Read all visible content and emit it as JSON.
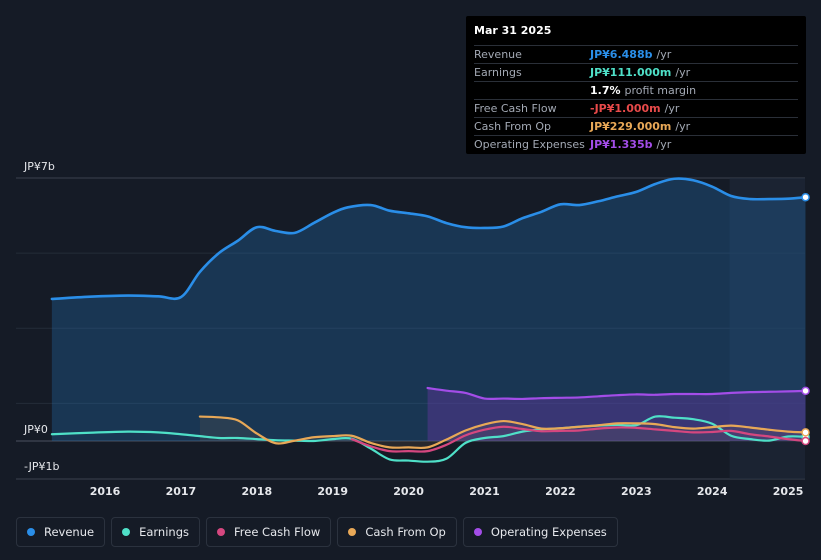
{
  "chart_data": {
    "type": "line",
    "y_axis": {
      "top_label": "JP¥7b",
      "zero_label": "JP¥0",
      "bottom_label": "-JP¥1b",
      "ylim_billions": [
        -1.0,
        7.0
      ]
    },
    "x_ticks": [
      "2016",
      "2017",
      "2018",
      "2019",
      "2020",
      "2021",
      "2022",
      "2023",
      "2024",
      "2025"
    ],
    "forecast_start": 2024.23,
    "series": [
      {
        "name": "Revenue",
        "color": "#2a8ee8",
        "fill": true,
        "key": "revenue",
        "points": [
          [
            2015.3,
            3.78
          ],
          [
            2015.8,
            3.84
          ],
          [
            2016.3,
            3.87
          ],
          [
            2016.7,
            3.85
          ],
          [
            2017.0,
            3.83
          ],
          [
            2017.25,
            4.5
          ],
          [
            2017.5,
            5.0
          ],
          [
            2017.75,
            5.33
          ],
          [
            2018.0,
            5.69
          ],
          [
            2018.25,
            5.59
          ],
          [
            2018.5,
            5.54
          ],
          [
            2018.75,
            5.8
          ],
          [
            2019.0,
            6.07
          ],
          [
            2019.2,
            6.22
          ],
          [
            2019.5,
            6.28
          ],
          [
            2019.75,
            6.13
          ],
          [
            2020.0,
            6.06
          ],
          [
            2020.25,
            5.98
          ],
          [
            2020.5,
            5.8
          ],
          [
            2020.75,
            5.69
          ],
          [
            2021.0,
            5.67
          ],
          [
            2021.25,
            5.71
          ],
          [
            2021.5,
            5.93
          ],
          [
            2021.75,
            6.1
          ],
          [
            2022.0,
            6.3
          ],
          [
            2022.25,
            6.28
          ],
          [
            2022.5,
            6.38
          ],
          [
            2022.75,
            6.51
          ],
          [
            2023.0,
            6.63
          ],
          [
            2023.25,
            6.84
          ],
          [
            2023.5,
            6.98
          ],
          [
            2023.75,
            6.94
          ],
          [
            2024.0,
            6.77
          ],
          [
            2024.25,
            6.52
          ],
          [
            2024.5,
            6.44
          ],
          [
            2024.75,
            6.44
          ],
          [
            2025.0,
            6.45
          ],
          [
            2025.23,
            6.488
          ]
        ]
      },
      {
        "name": "Operating Expenses",
        "color": "#a34de8",
        "fill": true,
        "key": "opex",
        "points": [
          [
            2020.25,
            1.41
          ],
          [
            2020.5,
            1.34
          ],
          [
            2020.75,
            1.28
          ],
          [
            2021.0,
            1.13
          ],
          [
            2021.25,
            1.13
          ],
          [
            2021.5,
            1.12
          ],
          [
            2021.75,
            1.14
          ],
          [
            2022.0,
            1.15
          ],
          [
            2022.25,
            1.16
          ],
          [
            2022.5,
            1.19
          ],
          [
            2022.75,
            1.22
          ],
          [
            2023.0,
            1.24
          ],
          [
            2023.25,
            1.23
          ],
          [
            2023.5,
            1.25
          ],
          [
            2023.75,
            1.25
          ],
          [
            2024.0,
            1.25
          ],
          [
            2024.25,
            1.28
          ],
          [
            2024.5,
            1.3
          ],
          [
            2024.75,
            1.31
          ],
          [
            2025.0,
            1.32
          ],
          [
            2025.23,
            1.335
          ]
        ]
      },
      {
        "name": "Earnings",
        "color": "#4fe0c8",
        "fill": false,
        "key": "earnings",
        "points": [
          [
            2015.3,
            0.18
          ],
          [
            2015.8,
            0.22
          ],
          [
            2016.3,
            0.25
          ],
          [
            2016.7,
            0.23
          ],
          [
            2017.0,
            0.18
          ],
          [
            2017.25,
            0.13
          ],
          [
            2017.5,
            0.08
          ],
          [
            2017.75,
            0.08
          ],
          [
            2018.0,
            0.05
          ],
          [
            2018.25,
            0.02
          ],
          [
            2018.5,
            0.01
          ],
          [
            2018.75,
            0.0
          ],
          [
            2019.0,
            0.05
          ],
          [
            2019.25,
            0.06
          ],
          [
            2019.5,
            -0.2
          ],
          [
            2019.75,
            -0.49
          ],
          [
            2020.0,
            -0.52
          ],
          [
            2020.25,
            -0.55
          ],
          [
            2020.5,
            -0.47
          ],
          [
            2020.75,
            -0.05
          ],
          [
            2021.0,
            0.08
          ],
          [
            2021.25,
            0.13
          ],
          [
            2021.5,
            0.25
          ],
          [
            2021.75,
            0.31
          ],
          [
            2022.0,
            0.34
          ],
          [
            2022.25,
            0.38
          ],
          [
            2022.5,
            0.41
          ],
          [
            2022.75,
            0.43
          ],
          [
            2023.0,
            0.42
          ],
          [
            2023.25,
            0.65
          ],
          [
            2023.5,
            0.62
          ],
          [
            2023.75,
            0.58
          ],
          [
            2024.0,
            0.46
          ],
          [
            2024.25,
            0.14
          ],
          [
            2024.5,
            0.05
          ],
          [
            2024.75,
            0.01
          ],
          [
            2025.0,
            0.12
          ],
          [
            2025.23,
            0.111
          ]
        ]
      },
      {
        "name": "Free Cash Flow",
        "color": "#d5477f",
        "fill": false,
        "key": "fcf",
        "points": [
          [
            2019.25,
            0.05
          ],
          [
            2019.5,
            -0.14
          ],
          [
            2019.75,
            -0.27
          ],
          [
            2020.0,
            -0.27
          ],
          [
            2020.25,
            -0.27
          ],
          [
            2020.5,
            -0.1
          ],
          [
            2020.75,
            0.15
          ],
          [
            2021.0,
            0.3
          ],
          [
            2021.25,
            0.38
          ],
          [
            2021.5,
            0.32
          ],
          [
            2021.75,
            0.26
          ],
          [
            2022.0,
            0.27
          ],
          [
            2022.25,
            0.28
          ],
          [
            2022.5,
            0.33
          ],
          [
            2022.75,
            0.36
          ],
          [
            2023.0,
            0.35
          ],
          [
            2023.25,
            0.31
          ],
          [
            2023.5,
            0.27
          ],
          [
            2023.75,
            0.23
          ],
          [
            2024.0,
            0.24
          ],
          [
            2024.25,
            0.27
          ],
          [
            2024.5,
            0.18
          ],
          [
            2024.75,
            0.12
          ],
          [
            2025.0,
            0.05
          ],
          [
            2025.23,
            -0.001
          ]
        ]
      },
      {
        "name": "Cash From Op",
        "color": "#e8a857",
        "fill": false,
        "key": "cfo",
        "points": [
          [
            2017.25,
            0.65
          ],
          [
            2017.5,
            0.63
          ],
          [
            2017.75,
            0.55
          ],
          [
            2018.0,
            0.2
          ],
          [
            2018.25,
            -0.06
          ],
          [
            2018.5,
            0.01
          ],
          [
            2018.75,
            0.1
          ],
          [
            2019.0,
            0.13
          ],
          [
            2019.25,
            0.14
          ],
          [
            2019.5,
            -0.05
          ],
          [
            2019.75,
            -0.17
          ],
          [
            2020.0,
            -0.17
          ],
          [
            2020.25,
            -0.17
          ],
          [
            2020.5,
            0.04
          ],
          [
            2020.75,
            0.28
          ],
          [
            2021.0,
            0.44
          ],
          [
            2021.25,
            0.53
          ],
          [
            2021.5,
            0.45
          ],
          [
            2021.75,
            0.33
          ],
          [
            2022.0,
            0.34
          ],
          [
            2022.25,
            0.38
          ],
          [
            2022.5,
            0.42
          ],
          [
            2022.75,
            0.47
          ],
          [
            2023.0,
            0.47
          ],
          [
            2023.25,
            0.45
          ],
          [
            2023.5,
            0.37
          ],
          [
            2023.75,
            0.33
          ],
          [
            2024.0,
            0.37
          ],
          [
            2024.25,
            0.41
          ],
          [
            2024.5,
            0.36
          ],
          [
            2024.75,
            0.3
          ],
          [
            2025.0,
            0.25
          ],
          [
            2025.23,
            0.229
          ]
        ]
      }
    ]
  },
  "tooltip": {
    "date": "Mar 31 2025",
    "rows": [
      {
        "label": "Revenue",
        "value": "JP¥6.488b",
        "unit": "/yr",
        "color": "#2a8ee8"
      },
      {
        "label": "Earnings",
        "value": "JP¥111.000m",
        "unit": "/yr",
        "color": "#4fe0c8"
      },
      {
        "label": "",
        "value": "1.7%",
        "unit": "profit margin",
        "color": "#ffffff"
      },
      {
        "label": "Free Cash Flow",
        "value": "-JP¥1.000m",
        "unit": "/yr",
        "color": "#e84a4a"
      },
      {
        "label": "Cash From Op",
        "value": "JP¥229.000m",
        "unit": "/yr",
        "color": "#e8a857"
      },
      {
        "label": "Operating Expenses",
        "value": "JP¥1.335b",
        "unit": "/yr",
        "color": "#a34de8"
      }
    ]
  },
  "legend": [
    {
      "label": "Revenue",
      "color": "#2a8ee8"
    },
    {
      "label": "Earnings",
      "color": "#4fe0c8"
    },
    {
      "label": "Free Cash Flow",
      "color": "#d5477f"
    },
    {
      "label": "Cash From Op",
      "color": "#e8a857"
    },
    {
      "label": "Operating Expenses",
      "color": "#a34de8"
    }
  ]
}
